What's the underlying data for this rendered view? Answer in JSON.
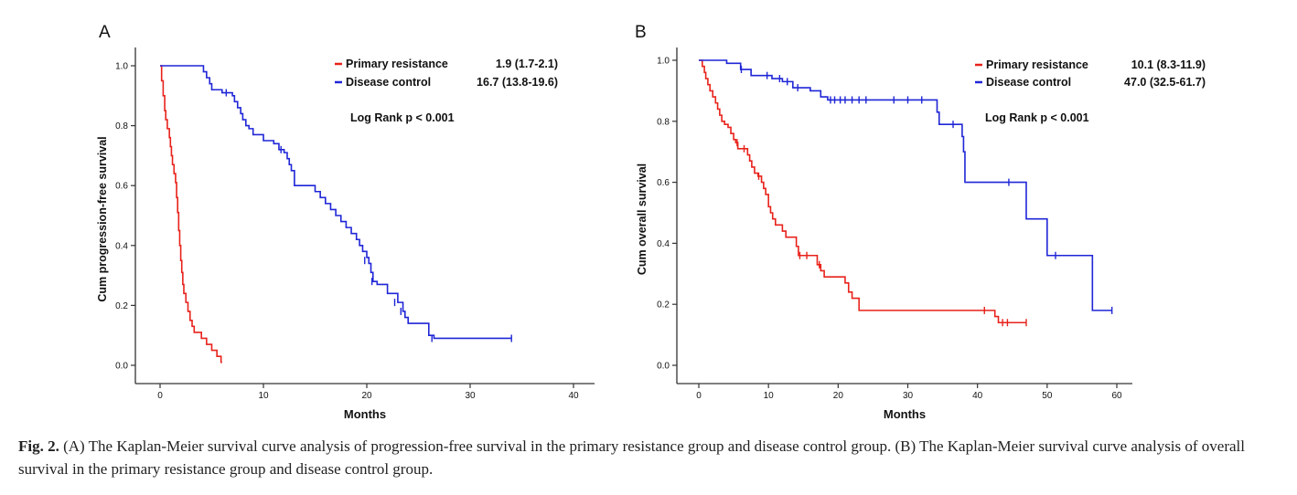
{
  "caption": {
    "label": "Fig. 2.",
    "text": "(A) The Kaplan-Meier survival curve analysis of progression-free survival in the primary resistance group and disease control group. (B) The Kaplan-Meier survival curve analysis of overall survival in the primary resistance group and disease control group."
  },
  "colors": {
    "primary_resistance": "#e8221b",
    "disease_control": "#1f26d6",
    "axis": "#333333"
  },
  "chart_data": [
    {
      "panel": "A",
      "type": "line",
      "xlabel": "Months",
      "ylabel": "Cum progression-free survival",
      "xlim": [
        0,
        40
      ],
      "ylim": [
        0,
        1
      ],
      "xticks": [
        "0",
        "10",
        "20",
        "30",
        "40"
      ],
      "yticks": [
        "0.0",
        "0.2",
        "0.4",
        "0.6",
        "0.8",
        "1.0"
      ],
      "annotation": "Log Rank p < 0.001",
      "legend_position": "top-right",
      "series": [
        {
          "name": "Primary resistance",
          "stat": "1.9 (1.7-2.1)",
          "color": "#e8221b",
          "steps": [
            [
              0,
              1.0
            ],
            [
              0.15,
              0.95
            ],
            [
              0.3,
              0.9
            ],
            [
              0.45,
              0.85
            ],
            [
              0.55,
              0.82
            ],
            [
              0.7,
              0.79
            ],
            [
              0.9,
              0.76
            ],
            [
              1.0,
              0.73
            ],
            [
              1.1,
              0.7
            ],
            [
              1.2,
              0.67
            ],
            [
              1.35,
              0.64
            ],
            [
              1.5,
              0.61
            ],
            [
              1.6,
              0.56
            ],
            [
              1.7,
              0.51
            ],
            [
              1.8,
              0.45
            ],
            [
              1.9,
              0.4
            ],
            [
              2.0,
              0.35
            ],
            [
              2.1,
              0.31
            ],
            [
              2.2,
              0.27
            ],
            [
              2.3,
              0.24
            ],
            [
              2.5,
              0.21
            ],
            [
              2.7,
              0.18
            ],
            [
              2.9,
              0.15
            ],
            [
              3.1,
              0.13
            ],
            [
              3.3,
              0.11
            ],
            [
              4.0,
              0.09
            ],
            [
              4.5,
              0.07
            ],
            [
              5.0,
              0.05
            ],
            [
              5.5,
              0.03
            ],
            [
              5.9,
              0.01
            ]
          ],
          "end": 6.0,
          "censored": []
        },
        {
          "name": "Disease control",
          "stat": "16.7 (13.8-19.6)",
          "color": "#1f26d6",
          "steps": [
            [
              0,
              1.0
            ],
            [
              4.2,
              0.98
            ],
            [
              4.5,
              0.96
            ],
            [
              4.8,
              0.94
            ],
            [
              5.0,
              0.92
            ],
            [
              6.0,
              0.91
            ],
            [
              7.0,
              0.9
            ],
            [
              7.2,
              0.88
            ],
            [
              7.5,
              0.86
            ],
            [
              7.8,
              0.84
            ],
            [
              8.0,
              0.82
            ],
            [
              8.3,
              0.8
            ],
            [
              8.6,
              0.79
            ],
            [
              9.0,
              0.77
            ],
            [
              10.0,
              0.75
            ],
            [
              11.0,
              0.74
            ],
            [
              11.5,
              0.72
            ],
            [
              12.0,
              0.71
            ],
            [
              12.3,
              0.69
            ],
            [
              12.5,
              0.67
            ],
            [
              12.7,
              0.65
            ],
            [
              13.0,
              0.6
            ],
            [
              15.0,
              0.58
            ],
            [
              15.5,
              0.56
            ],
            [
              16.0,
              0.54
            ],
            [
              16.5,
              0.52
            ],
            [
              17.0,
              0.5
            ],
            [
              17.5,
              0.48
            ],
            [
              18.0,
              0.46
            ],
            [
              18.5,
              0.44
            ],
            [
              19.0,
              0.42
            ],
            [
              19.3,
              0.4
            ],
            [
              19.6,
              0.38
            ],
            [
              20.0,
              0.36
            ],
            [
              20.2,
              0.34
            ],
            [
              20.4,
              0.31
            ],
            [
              20.6,
              0.28
            ],
            [
              21.0,
              0.27
            ],
            [
              22.0,
              0.24
            ],
            [
              23.0,
              0.21
            ],
            [
              23.5,
              0.18
            ],
            [
              23.7,
              0.16
            ],
            [
              24.0,
              0.14
            ],
            [
              26.0,
              0.1
            ],
            [
              26.5,
              0.09
            ]
          ],
          "end": 34.0,
          "censored": [
            [
              6.4,
              0.91
            ],
            [
              11.7,
              0.72
            ],
            [
              19.8,
              0.35
            ],
            [
              20.5,
              0.28
            ],
            [
              22.7,
              0.21
            ],
            [
              23.3,
              0.18
            ],
            [
              26.3,
              0.09
            ],
            [
              34.0,
              0.09
            ]
          ]
        }
      ]
    },
    {
      "panel": "B",
      "type": "line",
      "xlabel": "Months",
      "ylabel": "Cum overall survival",
      "xlim": [
        0,
        60
      ],
      "ylim": [
        0,
        1
      ],
      "xticks": [
        "0",
        "10",
        "20",
        "30",
        "40",
        "50",
        "60"
      ],
      "yticks": [
        "0.0",
        "0.2",
        "0.4",
        "0.6",
        "0.8",
        "1.0"
      ],
      "annotation": "Log Rank p < 0.001",
      "legend_position": "top-right",
      "series": [
        {
          "name": "Primary resistance",
          "stat": "10.1 (8.3-11.9)",
          "color": "#e8221b",
          "steps": [
            [
              0,
              1.0
            ],
            [
              0.5,
              0.98
            ],
            [
              0.8,
              0.96
            ],
            [
              1.0,
              0.94
            ],
            [
              1.3,
              0.92
            ],
            [
              1.6,
              0.9
            ],
            [
              2.0,
              0.88
            ],
            [
              2.4,
              0.86
            ],
            [
              2.7,
              0.84
            ],
            [
              3.0,
              0.82
            ],
            [
              3.3,
              0.8
            ],
            [
              3.7,
              0.79
            ],
            [
              4.2,
              0.78
            ],
            [
              4.6,
              0.76
            ],
            [
              5.0,
              0.74
            ],
            [
              5.3,
              0.73
            ],
            [
              5.6,
              0.71
            ],
            [
              7.0,
              0.69
            ],
            [
              7.3,
              0.67
            ],
            [
              7.6,
              0.65
            ],
            [
              8.0,
              0.63
            ],
            [
              8.5,
              0.62
            ],
            [
              9.0,
              0.6
            ],
            [
              9.3,
              0.58
            ],
            [
              9.6,
              0.56
            ],
            [
              10.0,
              0.52
            ],
            [
              10.3,
              0.5
            ],
            [
              10.6,
              0.48
            ],
            [
              11.0,
              0.46
            ],
            [
              12.0,
              0.44
            ],
            [
              12.5,
              0.42
            ],
            [
              14.0,
              0.39
            ],
            [
              14.3,
              0.36
            ],
            [
              17.0,
              0.33
            ],
            [
              17.5,
              0.31
            ],
            [
              18.0,
              0.29
            ],
            [
              21.0,
              0.27
            ],
            [
              21.5,
              0.24
            ],
            [
              22.0,
              0.22
            ],
            [
              23.0,
              0.18
            ],
            [
              42.5,
              0.16
            ],
            [
              43.0,
              0.14
            ]
          ],
          "end": 47.0,
          "censored": [
            [
              5.5,
              0.73
            ],
            [
              6.5,
              0.71
            ],
            [
              8.6,
              0.62
            ],
            [
              14.5,
              0.36
            ],
            [
              15.5,
              0.36
            ],
            [
              17.3,
              0.33
            ],
            [
              41.0,
              0.18
            ],
            [
              43.6,
              0.14
            ],
            [
              44.3,
              0.14
            ],
            [
              47.0,
              0.14
            ]
          ]
        },
        {
          "name": "Disease control",
          "stat": "47.0 (32.5-61.7)",
          "color": "#1f26d6",
          "steps": [
            [
              0,
              1.0
            ],
            [
              4.0,
              0.99
            ],
            [
              6.0,
              0.97
            ],
            [
              7.5,
              0.95
            ],
            [
              10.5,
              0.94
            ],
            [
              12.0,
              0.93
            ],
            [
              13.5,
              0.91
            ],
            [
              16.0,
              0.9
            ],
            [
              17.5,
              0.88
            ],
            [
              18.5,
              0.87
            ],
            [
              34.2,
              0.83
            ],
            [
              34.5,
              0.79
            ],
            [
              37.8,
              0.75
            ],
            [
              38.0,
              0.7
            ],
            [
              38.2,
              0.6
            ],
            [
              47.0,
              0.48
            ],
            [
              50.0,
              0.36
            ],
            [
              56.5,
              0.18
            ]
          ],
          "end": 59.3,
          "censored": [
            [
              6.1,
              0.97
            ],
            [
              9.8,
              0.95
            ],
            [
              11.6,
              0.94
            ],
            [
              12.7,
              0.93
            ],
            [
              14.2,
              0.91
            ],
            [
              18.9,
              0.87
            ],
            [
              19.5,
              0.87
            ],
            [
              20.3,
              0.87
            ],
            [
              21.0,
              0.87
            ],
            [
              22.0,
              0.87
            ],
            [
              23.0,
              0.87
            ],
            [
              24.0,
              0.87
            ],
            [
              28.0,
              0.87
            ],
            [
              30.0,
              0.87
            ],
            [
              32.0,
              0.87
            ],
            [
              36.5,
              0.79
            ],
            [
              44.5,
              0.6
            ],
            [
              51.2,
              0.36
            ],
            [
              59.3,
              0.18
            ]
          ]
        }
      ]
    }
  ]
}
